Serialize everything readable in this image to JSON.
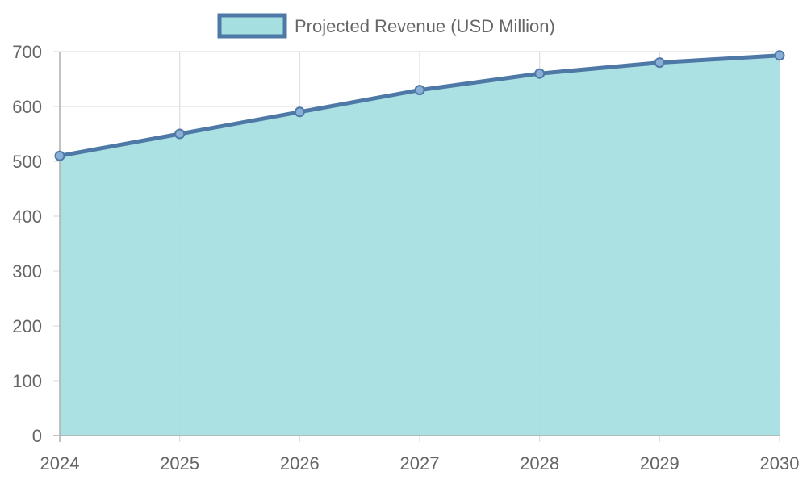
{
  "chart_data": {
    "type": "area",
    "x": [
      "2024",
      "2025",
      "2026",
      "2027",
      "2028",
      "2029",
      "2030"
    ],
    "series": [
      {
        "name": "Projected Revenue (USD Million)",
        "values": [
          510,
          550,
          590,
          630,
          660,
          680,
          693
        ]
      }
    ],
    "ylim": [
      0,
      700
    ],
    "yticks": [
      0,
      100,
      200,
      300,
      400,
      500,
      600,
      700
    ],
    "grid": true,
    "legend_position": "top-center",
    "colors": {
      "line": "#4e79a7",
      "fill": "#a6dfe0",
      "marker": "#8aaed6",
      "grid": "#e0e0e0",
      "axis": "#b0b0b0",
      "text": "#666666"
    }
  }
}
